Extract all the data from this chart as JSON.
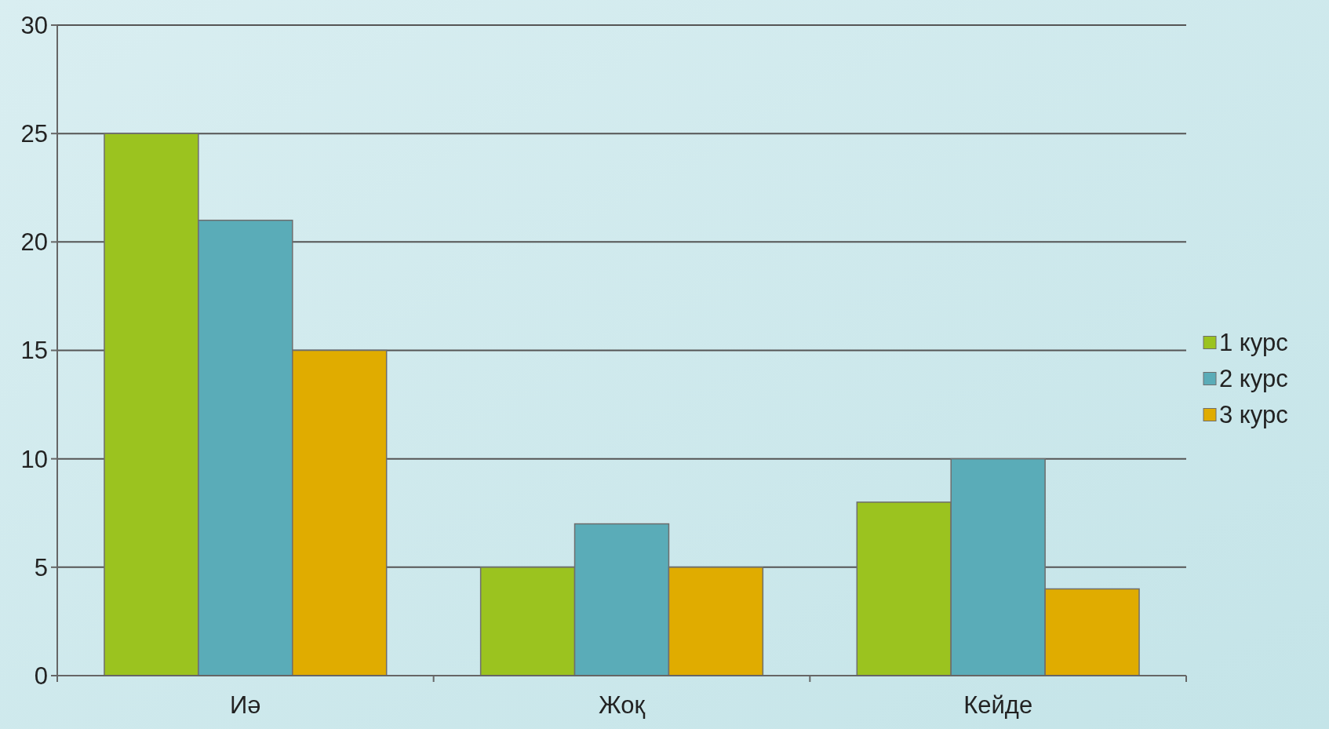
{
  "chart_data": {
    "type": "bar",
    "categories": [
      "Иә",
      "Жоқ",
      "Кейде"
    ],
    "series": [
      {
        "name": "1 курс",
        "color": "#9bc31f",
        "values": [
          25,
          5,
          8
        ]
      },
      {
        "name": "2 курс",
        "color": "#5aacb8",
        "values": [
          21,
          7,
          10
        ]
      },
      {
        "name": "3 курс",
        "color": "#e0ac00",
        "values": [
          15,
          5,
          4
        ]
      }
    ],
    "ylim": [
      0,
      30
    ],
    "yticks": [
      0,
      5,
      10,
      15,
      20,
      25,
      30
    ],
    "grid": "y",
    "legend": "right"
  }
}
